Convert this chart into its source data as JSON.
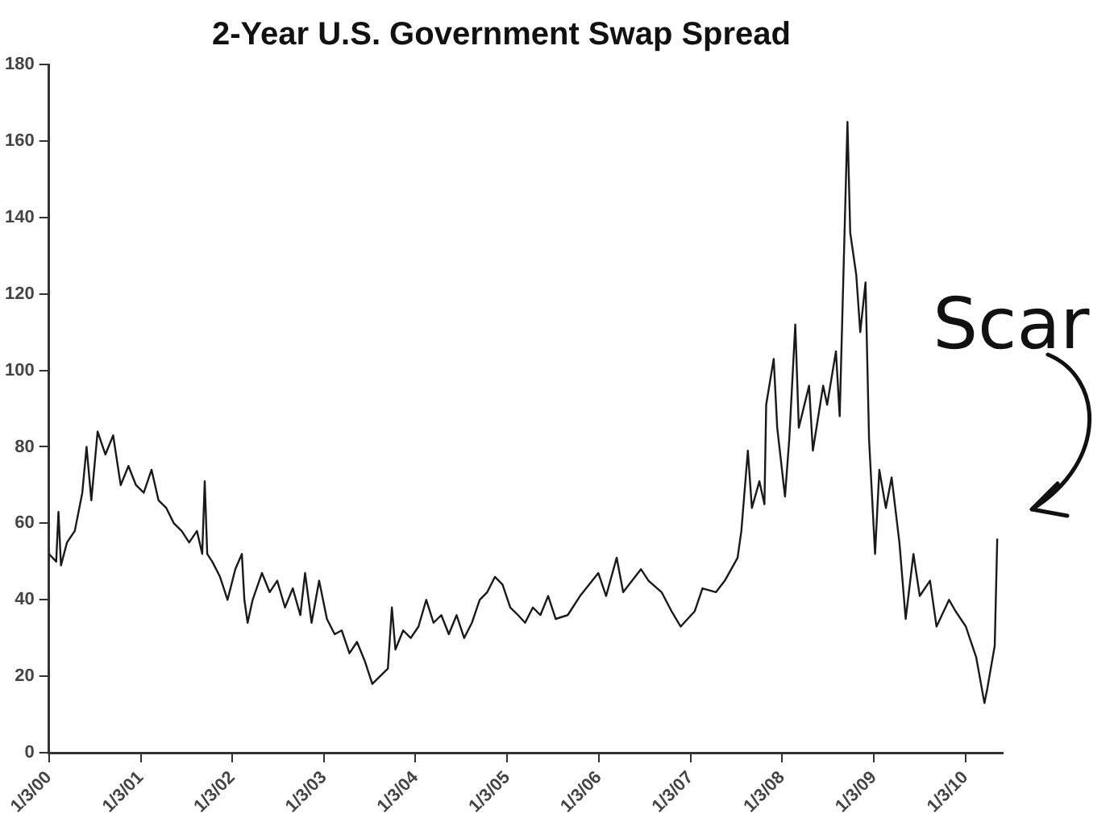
{
  "chart_data": {
    "type": "line",
    "title": "2-Year U.S. Government Swap Spread",
    "x": [
      "2000-01-03",
      "2000-02-01",
      "2000-02-10",
      "2000-02-20",
      "2000-03-15",
      "2000-04-15",
      "2000-05-15",
      "2000-06-01",
      "2000-06-20",
      "2000-07-15",
      "2000-08-15",
      "2000-09-15",
      "2000-10-15",
      "2000-11-15",
      "2000-12-15",
      "2001-01-15",
      "2001-02-15",
      "2001-03-15",
      "2001-04-15",
      "2001-05-15",
      "2001-06-15",
      "2001-07-15",
      "2001-08-15",
      "2001-09-05",
      "2001-09-15",
      "2001-09-25",
      "2001-10-15",
      "2001-11-15",
      "2001-12-15",
      "2002-01-15",
      "2002-02-10",
      "2002-02-20",
      "2002-03-05",
      "2002-03-25",
      "2002-05-01",
      "2002-06-01",
      "2002-07-01",
      "2002-08-01",
      "2002-09-01",
      "2002-10-01",
      "2002-10-20",
      "2002-11-15",
      "2002-12-15",
      "2003-01-15",
      "2003-02-15",
      "2003-03-15",
      "2003-04-15",
      "2003-05-15",
      "2003-06-15",
      "2003-07-15",
      "2003-08-15",
      "2003-09-15",
      "2003-10-01",
      "2003-10-15",
      "2003-11-15",
      "2003-12-15",
      "2004-01-15",
      "2004-02-15",
      "2004-03-15",
      "2004-04-15",
      "2004-05-15",
      "2004-06-15",
      "2004-07-15",
      "2004-08-15",
      "2004-09-15",
      "2004-10-15",
      "2004-11-15",
      "2004-12-15",
      "2005-01-15",
      "2005-02-15",
      "2005-03-15",
      "2005-04-15",
      "2005-05-15",
      "2005-06-15",
      "2005-07-15",
      "2005-09-01",
      "2005-10-20",
      "2006-01-01",
      "2006-02-01",
      "2006-03-15",
      "2006-04-10",
      "2006-06-20",
      "2006-07-20",
      "2006-09-10",
      "2006-10-20",
      "2006-11-25",
      "2007-01-20",
      "2007-02-20",
      "2007-04-15",
      "2007-05-20",
      "2007-07-10",
      "2007-07-25",
      "2007-08-20",
      "2007-09-05",
      "2007-10-05",
      "2007-10-25",
      "2007-11-01",
      "2007-12-01",
      "2007-12-15",
      "2008-01-15",
      "2008-02-01",
      "2008-02-25",
      "2008-03-10",
      "2008-04-20",
      "2008-05-05",
      "2008-06-15",
      "2008-07-01",
      "2008-08-05",
      "2008-08-20",
      "2008-09-20",
      "2008-10-01",
      "2008-10-25",
      "2008-11-10",
      "2008-12-01",
      "2008-12-15",
      "2009-01-08",
      "2009-01-25",
      "2009-02-20",
      "2009-03-15",
      "2009-04-15",
      "2009-05-10",
      "2009-06-10",
      "2009-07-05",
      "2009-08-15",
      "2009-09-10",
      "2009-10-30",
      "2009-11-25",
      "2010-01-05",
      "2010-01-20",
      "2010-02-15",
      "2010-03-20",
      "2010-04-01",
      "2010-04-30",
      "2010-05-10"
    ],
    "series": [
      {
        "color": "#1a1a1a",
        "values": [
          52,
          50,
          63,
          49,
          55,
          58,
          68,
          80,
          66,
          84,
          78,
          83,
          70,
          75,
          70,
          68,
          74,
          66,
          64,
          60,
          58,
          55,
          58,
          52,
          71,
          52,
          50,
          46,
          40,
          48,
          52,
          40,
          34,
          40,
          47,
          42,
          45,
          38,
          43,
          36,
          47,
          34,
          45,
          35,
          31,
          32,
          26,
          29,
          24,
          18,
          20,
          22,
          38,
          27,
          32,
          30,
          33,
          40,
          34,
          36,
          31,
          36,
          30,
          34,
          40,
          42,
          46,
          44,
          38,
          36,
          34,
          38,
          36,
          41,
          35,
          36,
          41,
          47,
          41,
          51,
          42,
          48,
          45,
          42,
          37,
          33,
          37,
          43,
          42,
          45,
          51,
          58,
          79,
          64,
          71,
          65,
          91,
          103,
          85,
          67,
          82,
          112,
          85,
          96,
          79,
          96,
          91,
          105,
          88,
          165,
          136,
          125,
          110,
          123,
          82,
          52,
          74,
          64,
          72,
          55,
          35,
          52,
          41,
          45,
          33,
          40,
          37,
          33,
          30,
          25,
          13,
          17,
          28,
          56
        ]
      }
    ],
    "xlim": [
      "2000-01-03",
      "2010-06-01"
    ],
    "xticks": [
      {
        "value": "2000-01-03",
        "label": "1/3/00"
      },
      {
        "value": "2001-01-03",
        "label": "1/3/01"
      },
      {
        "value": "2002-01-03",
        "label": "1/3/02"
      },
      {
        "value": "2003-01-03",
        "label": "1/3/03"
      },
      {
        "value": "2004-01-03",
        "label": "1/3/04"
      },
      {
        "value": "2005-01-03",
        "label": "1/3/05"
      },
      {
        "value": "2006-01-03",
        "label": "1/3/06"
      },
      {
        "value": "2007-01-03",
        "label": "1/3/07"
      },
      {
        "value": "2008-01-03",
        "label": "1/3/08"
      },
      {
        "value": "2009-01-03",
        "label": "1/3/09"
      },
      {
        "value": "2010-01-03",
        "label": "1/3/10"
      }
    ],
    "ylim": [
      0,
      180
    ],
    "yticks": [
      0,
      20,
      40,
      60,
      80,
      100,
      120,
      140,
      160,
      180
    ],
    "annotations": [
      {
        "text": "Scar",
        "x": "2010-05-10",
        "y": 56
      }
    ],
    "grid": false,
    "legend": false,
    "marker": "none",
    "line_style": "solid"
  }
}
